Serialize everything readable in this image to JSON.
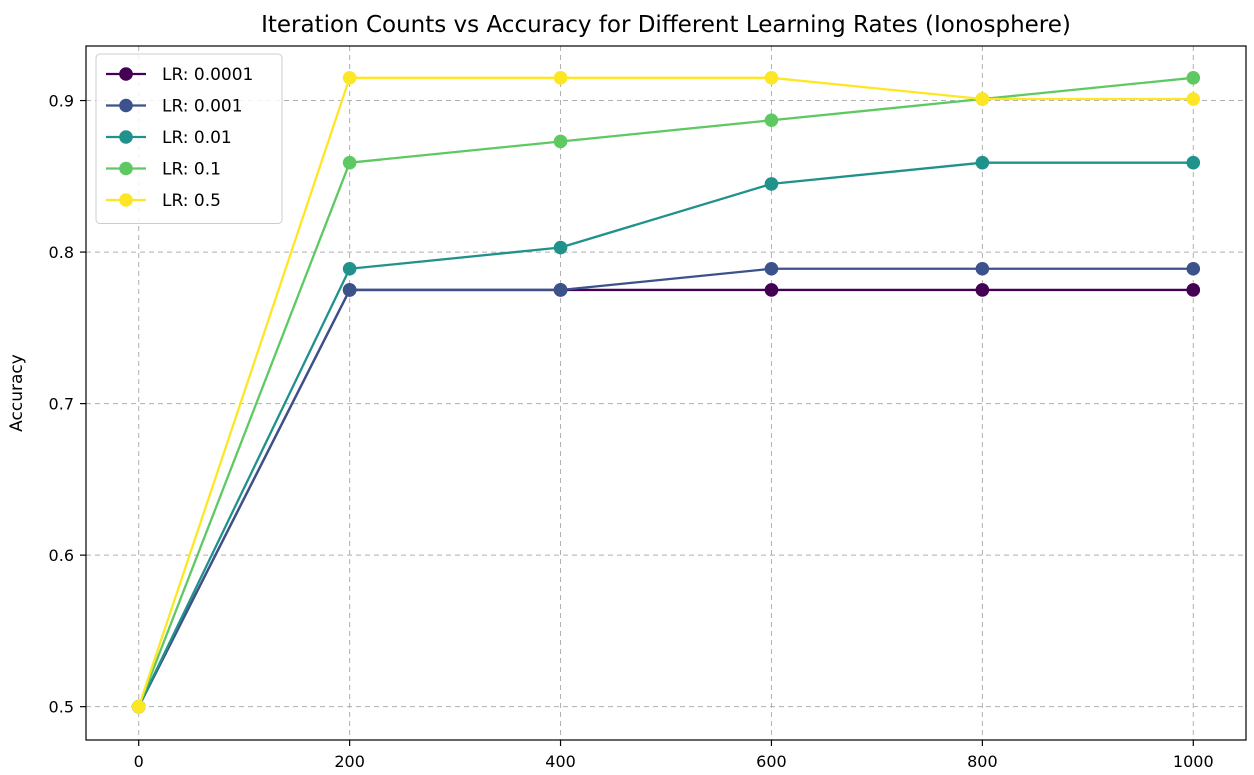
{
  "chart_data": {
    "type": "line",
    "title": "Iteration Counts vs Accuracy for Different Learning Rates (Ionosphere)",
    "xlabel": "",
    "ylabel": "Accuracy",
    "x": [
      0,
      200,
      400,
      600,
      800,
      1000
    ],
    "xticks": [
      0,
      200,
      400,
      600,
      800,
      1000
    ],
    "xlim": [
      -50,
      1050
    ],
    "yticks": [
      0.5,
      0.6,
      0.7,
      0.8,
      0.9
    ],
    "ytick_labels": [
      "0.5",
      "0.6",
      "0.7",
      "0.8",
      "0.9"
    ],
    "ylim": [
      0.478,
      0.936
    ],
    "grid": true,
    "legend_position": "top-left",
    "series": [
      {
        "name": "LR: 0.0001",
        "color": "#440154",
        "values": [
          0.5,
          0.775,
          0.775,
          0.775,
          0.775,
          0.775
        ]
      },
      {
        "name": "LR: 0.001",
        "color": "#3b528b",
        "values": [
          0.5,
          0.775,
          0.775,
          0.789,
          0.789,
          0.789
        ]
      },
      {
        "name": "LR: 0.01",
        "color": "#21918c",
        "values": [
          0.5,
          0.789,
          0.803,
          0.845,
          0.859,
          0.859
        ]
      },
      {
        "name": "LR: 0.1",
        "color": "#5ec962",
        "values": [
          0.5,
          0.859,
          0.873,
          0.887,
          0.901,
          0.915
        ]
      },
      {
        "name": "LR: 0.5",
        "color": "#fde725",
        "values": [
          0.5,
          0.915,
          0.915,
          0.915,
          0.901,
          0.901
        ]
      }
    ]
  }
}
